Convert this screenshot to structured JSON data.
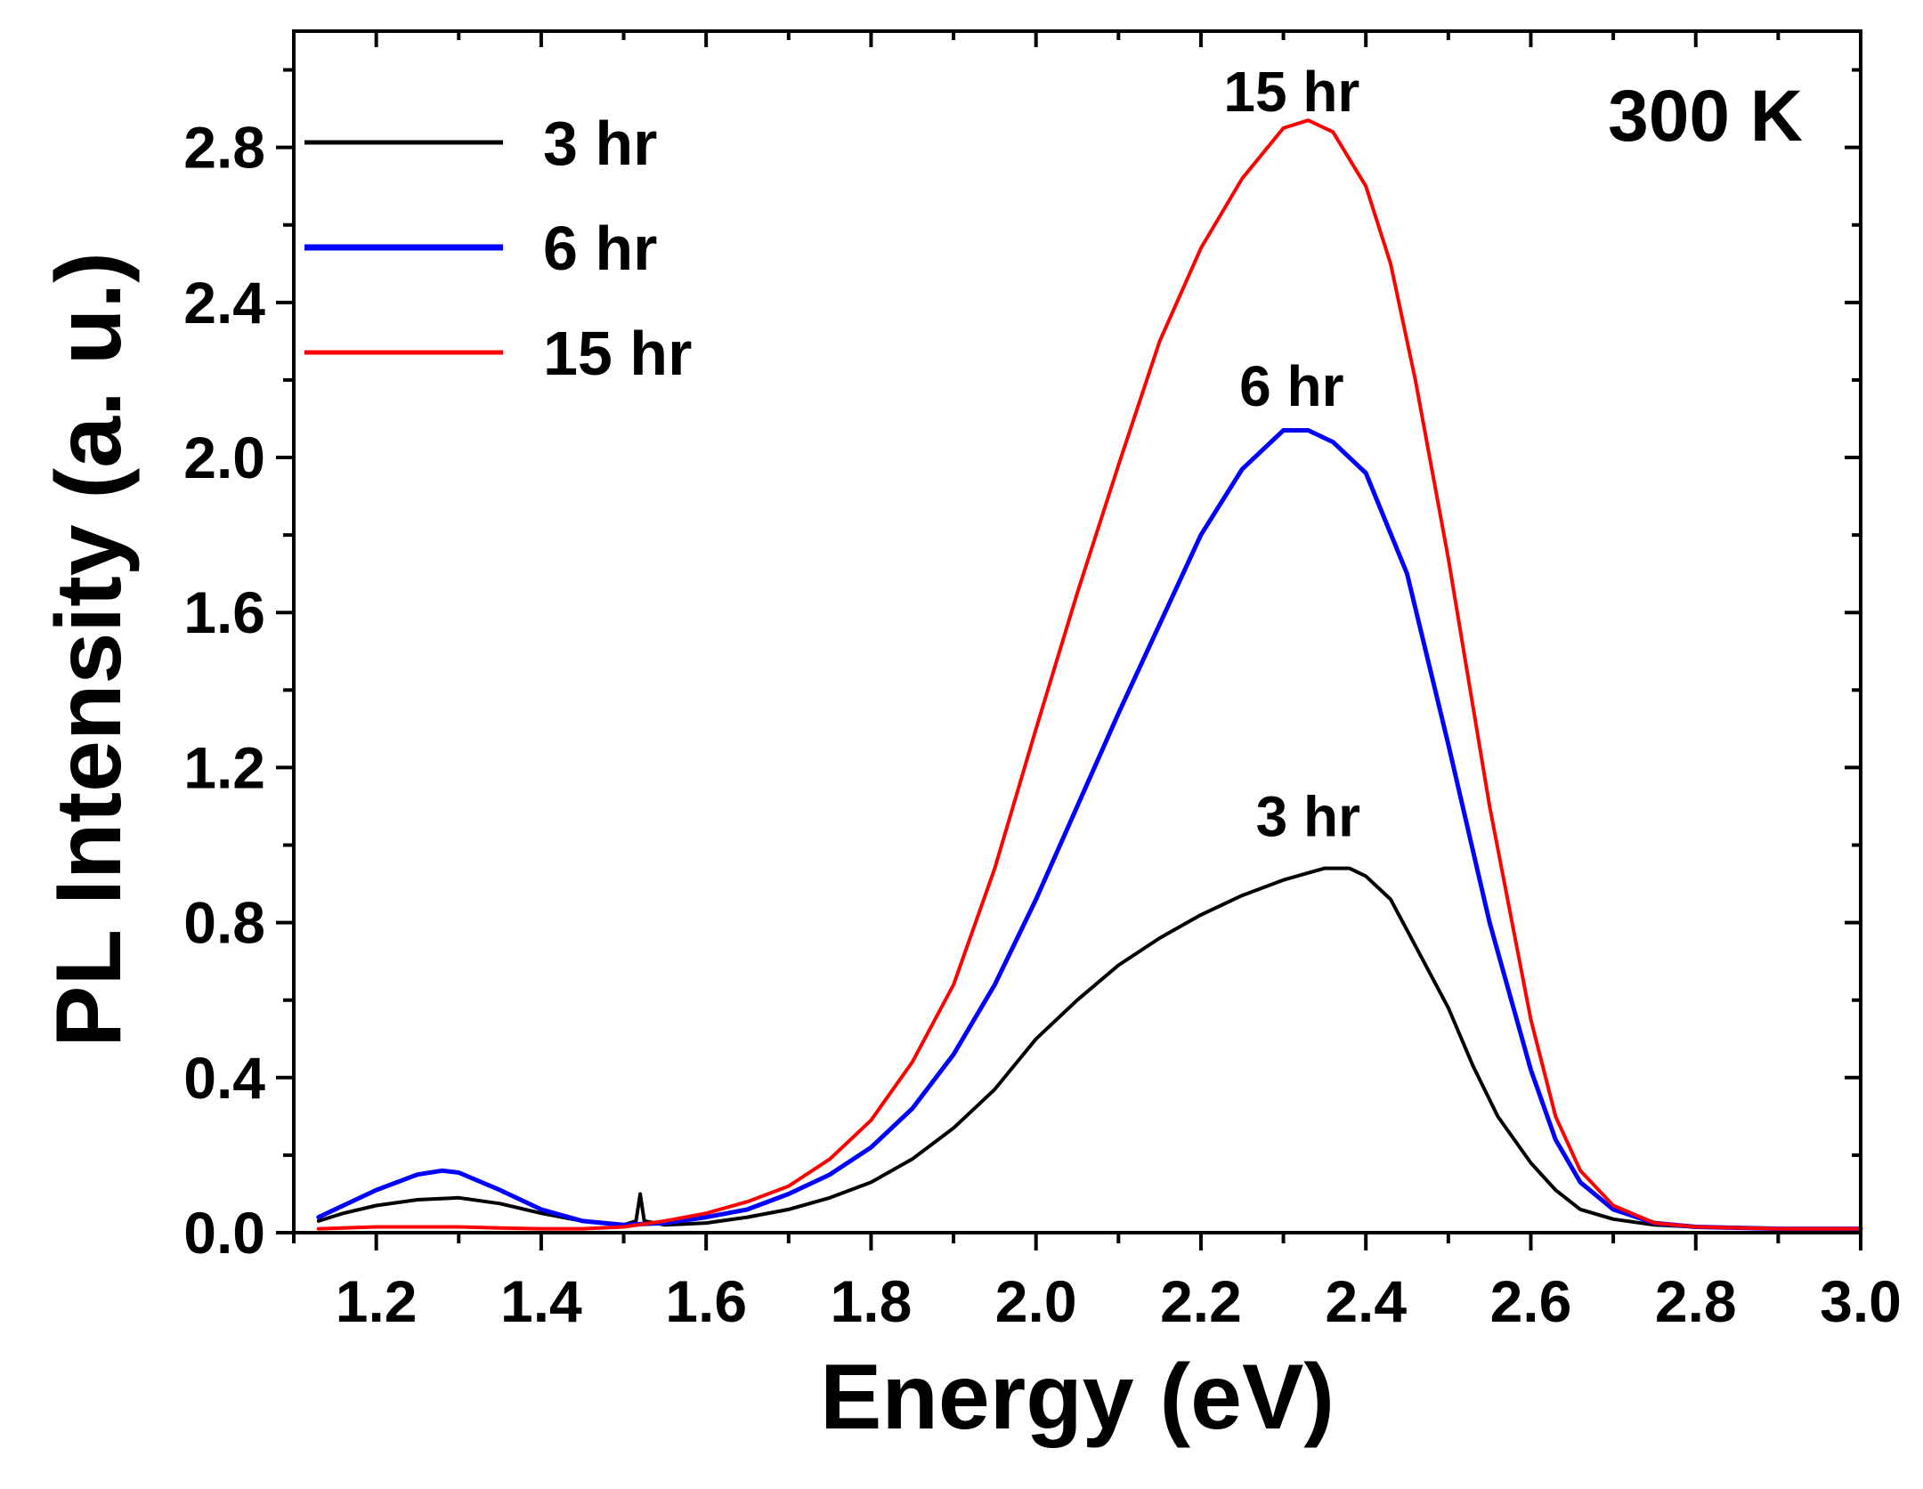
{
  "chart_data": {
    "type": "line",
    "xlabel": "Energy (eV)",
    "ylabel": "PL Intensity (a. u.)",
    "xlim": [
      1.1,
      3.0
    ],
    "ylim": [
      0.0,
      3.1
    ],
    "x_ticks": [
      1.2,
      1.4,
      1.6,
      1.8,
      2.0,
      2.2,
      2.4,
      2.6,
      2.8,
      3.0
    ],
    "x_tick_labels": [
      "1.2",
      "1.4",
      "1.6",
      "1.8",
      "2.0",
      "2.2",
      "2.4",
      "2.6",
      "2.8",
      "3.0"
    ],
    "y_ticks": [
      0.0,
      0.4,
      0.8,
      1.2,
      1.6,
      2.0,
      2.4,
      2.8
    ],
    "y_tick_labels": [
      "0.0",
      "0.4",
      "0.8",
      "1.2",
      "1.6",
      "2.0",
      "2.4",
      "2.8"
    ],
    "grid": false,
    "legend": "top-left",
    "annotation": "300 K",
    "series": [
      {
        "name": "3 hr",
        "color": "#000000",
        "peak_label": "3 hr",
        "peak_label_at": [
          2.33,
          1.0
        ],
        "x": [
          1.13,
          1.16,
          1.2,
          1.25,
          1.3,
          1.35,
          1.4,
          1.45,
          1.5,
          1.515,
          1.52,
          1.525,
          1.55,
          1.6,
          1.65,
          1.7,
          1.75,
          1.8,
          1.85,
          1.9,
          1.95,
          2.0,
          2.05,
          2.1,
          2.15,
          2.2,
          2.25,
          2.3,
          2.35,
          2.38,
          2.4,
          2.43,
          2.46,
          2.5,
          2.53,
          2.56,
          2.6,
          2.63,
          2.66,
          2.7,
          2.75,
          2.8,
          2.9,
          3.0
        ],
        "y": [
          0.03,
          0.05,
          0.07,
          0.085,
          0.09,
          0.075,
          0.05,
          0.03,
          0.02,
          0.03,
          0.1,
          0.03,
          0.02,
          0.025,
          0.04,
          0.06,
          0.09,
          0.13,
          0.19,
          0.27,
          0.37,
          0.5,
          0.6,
          0.69,
          0.76,
          0.82,
          0.87,
          0.91,
          0.94,
          0.94,
          0.92,
          0.86,
          0.74,
          0.58,
          0.43,
          0.3,
          0.18,
          0.11,
          0.06,
          0.035,
          0.02,
          0.015,
          0.01,
          0.01
        ]
      },
      {
        "name": "6 hr",
        "color": "#0000ff",
        "peak_label": "6 hr",
        "peak_label_at": [
          2.31,
          2.11
        ],
        "x": [
          1.13,
          1.16,
          1.2,
          1.25,
          1.28,
          1.3,
          1.35,
          1.4,
          1.45,
          1.5,
          1.55,
          1.6,
          1.65,
          1.7,
          1.75,
          1.8,
          1.85,
          1.9,
          1.95,
          2.0,
          2.05,
          2.1,
          2.15,
          2.2,
          2.25,
          2.3,
          2.33,
          2.36,
          2.4,
          2.45,
          2.5,
          2.55,
          2.6,
          2.63,
          2.66,
          2.7,
          2.75,
          2.8,
          2.9,
          3.0
        ],
        "y": [
          0.04,
          0.07,
          0.11,
          0.15,
          0.16,
          0.155,
          0.11,
          0.06,
          0.03,
          0.02,
          0.025,
          0.04,
          0.06,
          0.1,
          0.15,
          0.22,
          0.32,
          0.46,
          0.64,
          0.86,
          1.1,
          1.34,
          1.57,
          1.8,
          1.97,
          2.07,
          2.07,
          2.04,
          1.96,
          1.7,
          1.26,
          0.8,
          0.42,
          0.24,
          0.13,
          0.06,
          0.025,
          0.015,
          0.01,
          0.01
        ]
      },
      {
        "name": "15 hr",
        "color": "#ff0000",
        "peak_label": "15 hr",
        "peak_label_at": [
          2.31,
          2.87
        ],
        "x": [
          1.13,
          1.2,
          1.25,
          1.3,
          1.35,
          1.4,
          1.45,
          1.5,
          1.55,
          1.6,
          1.65,
          1.7,
          1.75,
          1.8,
          1.85,
          1.9,
          1.95,
          2.0,
          2.05,
          2.1,
          2.15,
          2.2,
          2.25,
          2.3,
          2.33,
          2.36,
          2.4,
          2.43,
          2.46,
          2.5,
          2.55,
          2.6,
          2.63,
          2.66,
          2.7,
          2.75,
          2.8,
          2.9,
          3.0
        ],
        "y": [
          0.01,
          0.015,
          0.015,
          0.015,
          0.012,
          0.01,
          0.01,
          0.015,
          0.03,
          0.05,
          0.08,
          0.12,
          0.19,
          0.29,
          0.44,
          0.64,
          0.94,
          1.3,
          1.65,
          1.98,
          2.3,
          2.54,
          2.72,
          2.85,
          2.87,
          2.84,
          2.7,
          2.5,
          2.2,
          1.74,
          1.1,
          0.55,
          0.3,
          0.16,
          0.07,
          0.025,
          0.015,
          0.01,
          0.01
        ]
      }
    ]
  }
}
